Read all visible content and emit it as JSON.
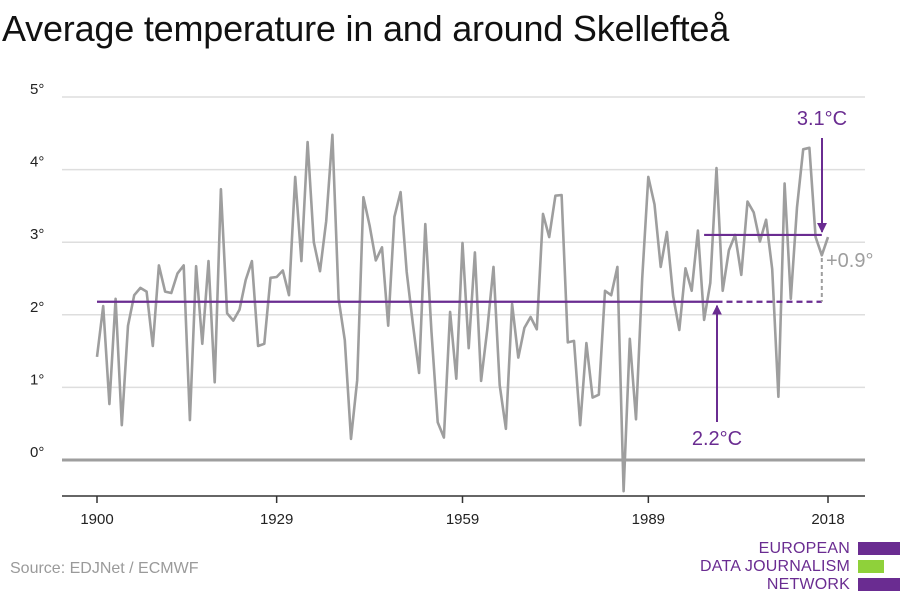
{
  "title": "Average temperature in and around Skellefteå",
  "source": "Source: EDJNet / ECMWF",
  "logo": {
    "lines": [
      "EUROPEAN",
      "DATA JOURNALISM",
      "NETWORK"
    ]
  },
  "colors": {
    "series": "#9e9e9e",
    "accent": "#6a2c91",
    "logo_green": "#8fd13a",
    "zero_line": "#9e9e9e",
    "grid": "#dedede"
  },
  "chart_data": {
    "type": "line",
    "title": "Average temperature in and around Skellefteå",
    "xlabel": "",
    "ylabel": "",
    "x_ticks": [
      "1900",
      "1929",
      "1959",
      "1989",
      "2018"
    ],
    "x_tick_values": [
      1900,
      1929,
      1959,
      1989,
      2018
    ],
    "y_ticks": [
      "0°",
      "1°",
      "2°",
      "3°",
      "4°",
      "5°"
    ],
    "y_tick_values": [
      0,
      1,
      2,
      3,
      4,
      5
    ],
    "xlim": [
      1900,
      2018
    ],
    "ylim": [
      -0.5,
      5
    ],
    "grid": "horizontal",
    "series": [
      {
        "x": [
          1900,
          1901,
          1902,
          1903,
          1904,
          1905,
          1906,
          1907,
          1908,
          1909,
          1910,
          1911,
          1912,
          1913,
          1914,
          1915,
          1916,
          1917,
          1918,
          1919,
          1920,
          1921,
          1922,
          1923,
          1924,
          1925,
          1926,
          1927,
          1928,
          1929,
          1930,
          1931,
          1932,
          1933,
          1934,
          1935,
          1936,
          1937,
          1938,
          1939,
          1940,
          1941,
          1942,
          1943,
          1944,
          1945,
          1946,
          1947,
          1948,
          1949,
          1950,
          1951,
          1952,
          1953,
          1954,
          1955,
          1956,
          1957,
          1958,
          1959,
          1960,
          1961,
          1962,
          1963,
          1964,
          1965,
          1966,
          1967,
          1968,
          1969,
          1970,
          1971,
          1972,
          1973,
          1974,
          1975,
          1976,
          1977,
          1978,
          1979,
          1980,
          1981,
          1982,
          1983,
          1984,
          1985,
          1986,
          1987,
          1988,
          1989,
          1990,
          1991,
          1992,
          1993,
          1994,
          1995,
          1996,
          1997,
          1998,
          1999,
          2000,
          2001,
          2002,
          2003,
          2004,
          2005,
          2006,
          2007,
          2008,
          2009,
          2010,
          2011,
          2012,
          2013,
          2014,
          2015,
          2016,
          2017,
          2018
        ],
        "values": [
          1.42,
          2.12,
          0.77,
          2.22,
          0.48,
          1.85,
          2.27,
          2.37,
          2.32,
          1.57,
          2.68,
          2.32,
          2.3,
          2.57,
          2.68,
          0.55,
          2.67,
          1.6,
          2.74,
          1.07,
          3.73,
          2.02,
          1.92,
          2.07,
          2.48,
          2.74,
          1.57,
          1.6,
          2.51,
          2.52,
          2.61,
          2.27,
          3.9,
          2.74,
          4.38,
          3.0,
          2.6,
          3.29,
          4.48,
          2.22,
          1.65,
          0.29,
          1.1,
          3.62,
          3.23,
          2.75,
          2.93,
          1.85,
          3.35,
          3.69,
          2.59,
          1.87,
          1.2,
          3.25,
          1.76,
          0.52,
          0.31,
          2.04,
          1.12,
          2.99,
          1.54,
          2.86,
          1.09,
          1.8,
          2.66,
          1.03,
          0.43,
          2.15,
          1.41,
          1.82,
          1.97,
          1.8,
          3.39,
          3.07,
          3.64,
          3.65,
          1.62,
          1.64,
          0.48,
          1.61,
          0.86,
          0.9,
          2.33,
          2.27,
          2.66,
          -0.43,
          1.67,
          0.56,
          2.5,
          3.9,
          3.52,
          2.66,
          3.14,
          2.26,
          1.79,
          2.64,
          2.33,
          3.16,
          1.93,
          2.44,
          4.02,
          2.33,
          2.89,
          3.1,
          2.55,
          3.56,
          3.41,
          3.01,
          3.31,
          2.63,
          0.87,
          3.81,
          2.22,
          3.48,
          4.28,
          4.3,
          3.07,
          2.82,
          3.07
        ]
      }
    ],
    "baseline": {
      "label": "2.2°C",
      "value": 2.18,
      "x_range": [
        1900,
        2017
      ]
    },
    "recent": {
      "label": "3.1°C",
      "value": 3.1,
      "x_range": [
        1998,
        2017
      ]
    },
    "difference_label": "+0.9°"
  }
}
